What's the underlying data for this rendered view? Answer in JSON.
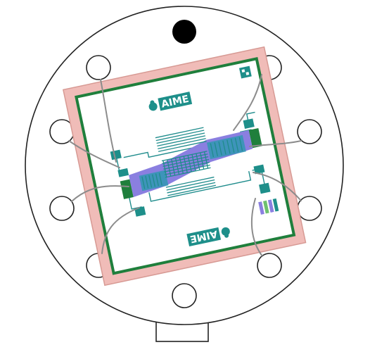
{
  "logo": {
    "text": "AIME"
  },
  "colors": {
    "background": "#ffffff",
    "header_outline": "#222222",
    "die_fill": "#f0bcb8",
    "die_stroke": "#d79a94",
    "chip_border": "#1f7f3c",
    "trace": "#1f8c8c",
    "pad": "#1e8f8a",
    "channel": "#8a7fe0",
    "wire": "#8c8c8c",
    "dot": "#000000"
  }
}
